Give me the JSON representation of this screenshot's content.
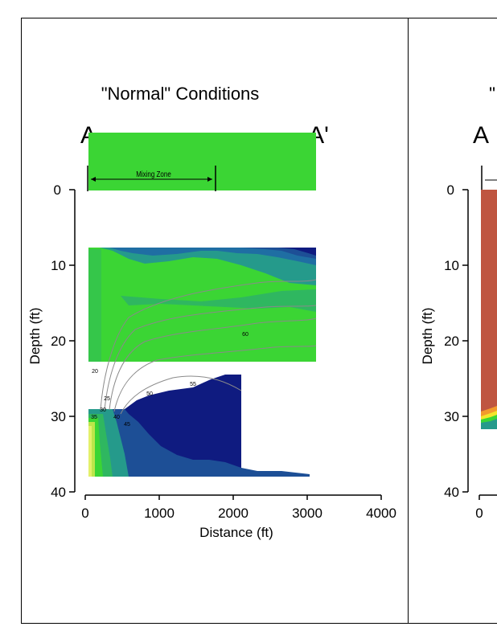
{
  "panels": [
    {
      "title": "\"Normal\"   Conditions",
      "section_start": "A",
      "section_end": "A'",
      "zone_label": "Mixing      Zone",
      "chart_data": {
        "type": "heatmap",
        "xlabel": "Distance (ft)",
        "ylabel": "Depth (ft)",
        "xlim": [
          0,
          4000
        ],
        "ylim": [
          0,
          40
        ],
        "x_ticks": [
          "0",
          "1000",
          "2000",
          "3000",
          "4000"
        ],
        "y_ticks": [
          "0",
          "10",
          "20",
          "30",
          "40"
        ],
        "mixing_zone": [
          0,
          1750
        ],
        "contour_labels": [
          "20",
          "25",
          "30",
          "35",
          "40",
          "45",
          "50",
          "55",
          "60"
        ],
        "colors": {
          "green": "#3bd534",
          "teal": "#259a8b",
          "blue_light": "#1f6ea3",
          "blue_mid": "#1d4f96",
          "blue_dark": "#0f1b80",
          "yellow": "#e4f06a",
          "contour": "#8a8a8a"
        }
      }
    },
    {
      "title": "\"",
      "section_start": "A",
      "chart_data": {
        "type": "heatmap",
        "xlabel": "",
        "ylabel": "Depth (ft)",
        "ylim": [
          0,
          40
        ],
        "x_ticks": [
          "0"
        ],
        "y_ticks": [
          "0",
          "10",
          "20",
          "30",
          "40"
        ],
        "colors": {
          "red": "#bf5540",
          "orange": "#f29a2c",
          "yellow": "#f2e52a",
          "green": "#3bd534",
          "teal": "#259a8b"
        }
      }
    }
  ]
}
